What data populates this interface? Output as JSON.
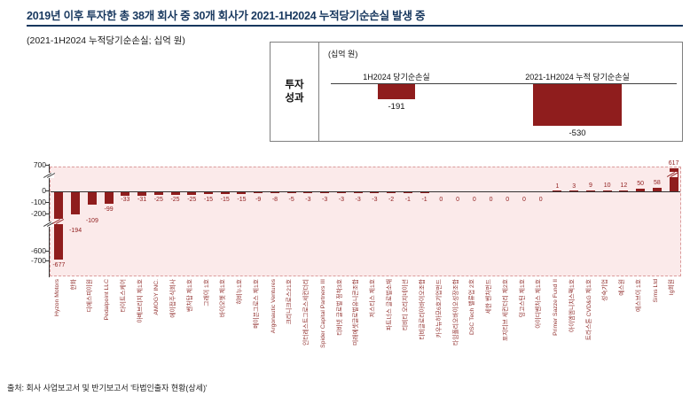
{
  "title": "2019년 이후 투자한 총 38개 회사 중 30개 회사가 2021-1H2024 누적당기순손실 발생 중",
  "subtitle": "(2021-1H2024 누적당기순손실; 십억 원)",
  "source": "출처: 회사 사업보고서 및 반기보고서 '타법인출자 현황(상세)'",
  "inset": {
    "row_label": "투자\n성과",
    "unit": "(십억 원)",
    "bars": [
      {
        "label": "1H2024 당기순손실",
        "value": -191
      },
      {
        "label": "2021-1H2024 누적 당기순손실",
        "value": -530
      }
    ]
  },
  "chart_data": {
    "type": "bar",
    "title": "2021-1H2024 누적당기순손실",
    "ylabel": "십억 원",
    "xlabel": "",
    "ylim": [
      -700,
      700
    ],
    "axis_break": true,
    "grid": false,
    "legend": "none",
    "bar_color": "#8F1D1D",
    "plot_background": "#FBEAEA",
    "y_ticks": [
      700,
      0,
      -100,
      -200,
      -600,
      -700
    ],
    "categories": [
      "Hyzon Motors",
      "한화",
      "디에스피이원",
      "Pedalpoint LLC",
      "타이트스케어",
      "아베브리지 제1호",
      "AMOGY INC.",
      "에이접주식회사",
      "벤처탑 제1호",
      "그래이 1호",
      "바이오헷 제1호",
      "히비누1호",
      "메이븐그로스 제1호",
      "Argonautic Ventures",
      "크리니크로스21호",
      "인터레스트그로스세컨더리",
      "Spider Capital Partners III",
      "티비넷 글로벌 정착3호",
      "미래에셋글로벌유니콘조합",
      "저스티스 제1호",
      "파트너스 글로벌소재",
      "티비티 오리지네이션",
      "티비글로리아바이오조합",
      "카우뉴하모6호기업펀드",
      "타임폴리오바이오성장조합",
      "DSC Tech 밸류업 2호",
      "세한 벤처펀드",
      "포지티브 세컨더리 제2호",
      "밍고스틴 제1호",
      "아이디벤처스 제1호",
      "Primer Sazze Fund II",
      "아이엠엠니치스펙1호",
      "트라스톤 CVD&G 제1호",
      "성숙기업",
      "예스원",
      "에스브이 1호",
      "Sims Ltd",
      "Ig회원"
    ],
    "values": [
      -677,
      -194,
      -109,
      -99,
      -33,
      -31,
      -25,
      -25,
      -25,
      -15,
      -15,
      -15,
      -9,
      -8,
      -5,
      -3,
      -3,
      -3,
      -3,
      -3,
      -2,
      -1,
      -1,
      0,
      0,
      0,
      0,
      0,
      0,
      0,
      1,
      3,
      9,
      10,
      12,
      50,
      58,
      617
    ]
  },
  "colors": {
    "accent_navy": "#17375E",
    "bar_red": "#8F1D1D",
    "plot_pink": "#FBEAEA",
    "xlabel_red": "#943634"
  }
}
